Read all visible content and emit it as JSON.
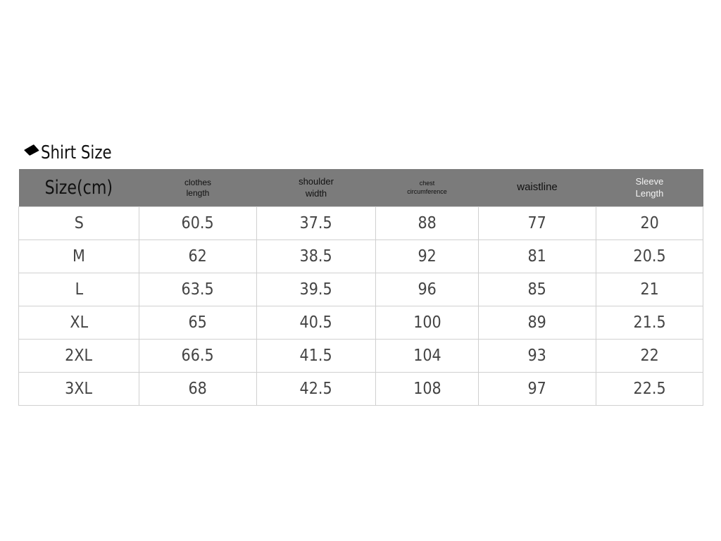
{
  "title": "Shirt Size",
  "colors": {
    "header_bg": "#7b7b7b",
    "border": "#d0d0d0",
    "text": "#444444"
  },
  "table": {
    "headers": [
      {
        "line1": "Size(cm)",
        "line2": ""
      },
      {
        "line1": "clothes",
        "line2": "length"
      },
      {
        "line1": "shoulder",
        "line2": "width"
      },
      {
        "line1": "chest",
        "line2": "circumference"
      },
      {
        "line1": "waistline",
        "line2": ""
      },
      {
        "line1": "Sleeve",
        "line2": "Length"
      }
    ],
    "rows": [
      [
        "S",
        "60.5",
        "37.5",
        "88",
        "77",
        "20"
      ],
      [
        "M",
        "62",
        "38.5",
        "92",
        "81",
        "20.5"
      ],
      [
        "L",
        "63.5",
        "39.5",
        "96",
        "85",
        "21"
      ],
      [
        "XL",
        "65",
        "40.5",
        "100",
        "89",
        "21.5"
      ],
      [
        "2XL",
        "66.5",
        "41.5",
        "104",
        "93",
        "22"
      ],
      [
        "3XL",
        "68",
        "42.5",
        "108",
        "97",
        "22.5"
      ]
    ]
  }
}
